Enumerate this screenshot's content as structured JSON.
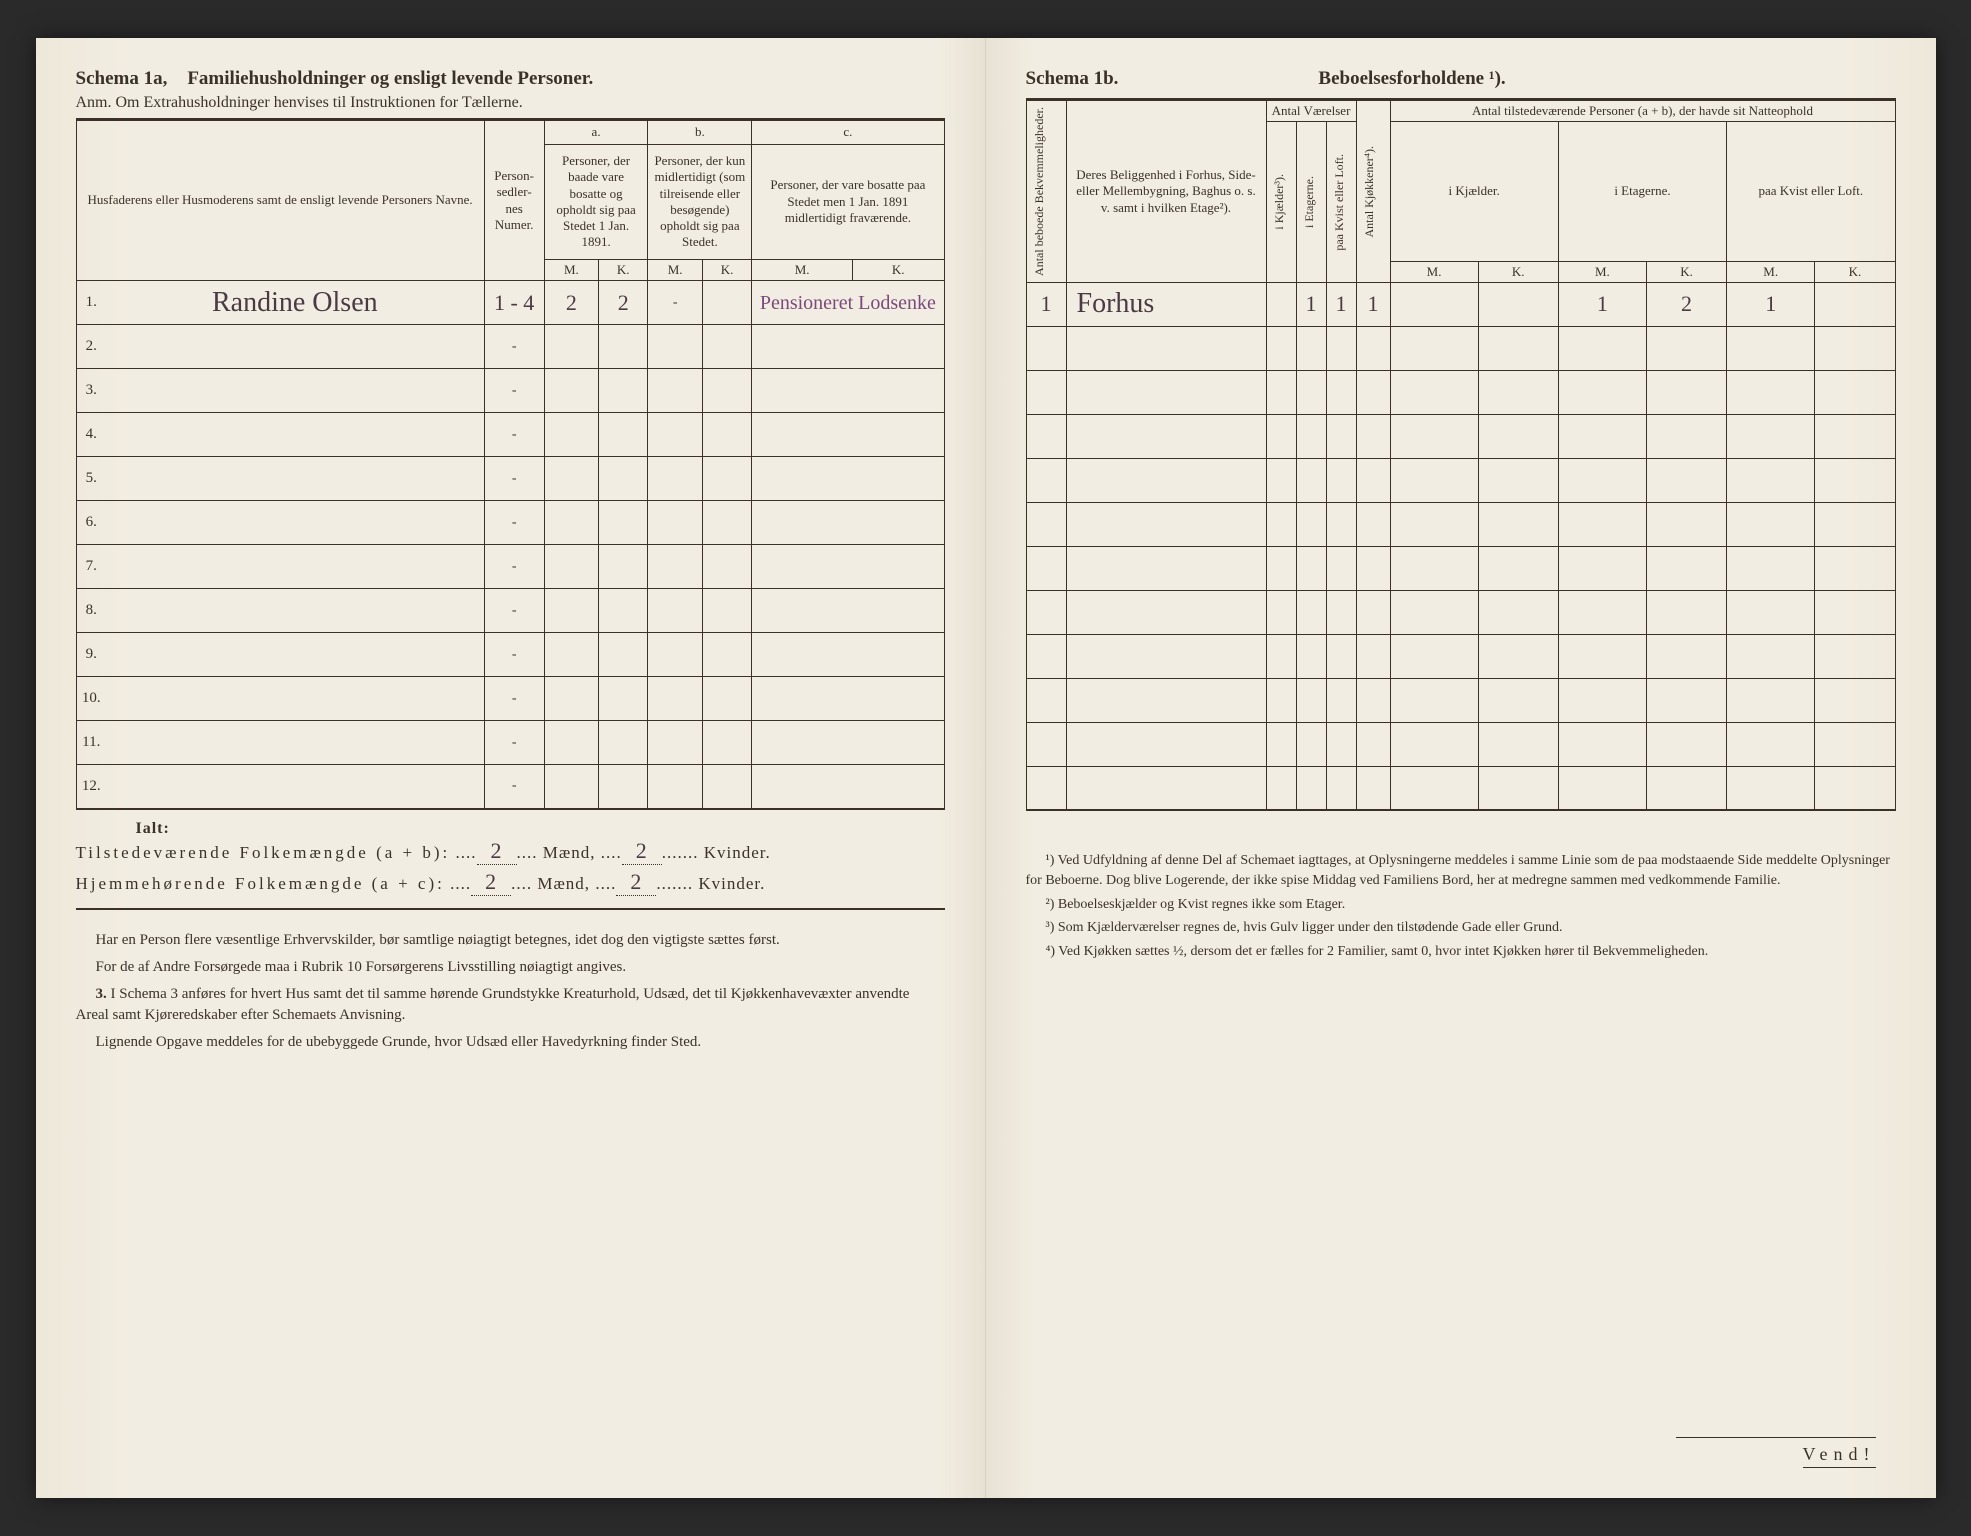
{
  "left": {
    "schema_label": "Schema 1a,",
    "schema_title": "Familiehusholdninger og ensligt levende Personer.",
    "anm": "Anm. Om Extrahusholdninger henvises til Instruktionen for Tællerne.",
    "columns": {
      "name": "Husfaderens eller Husmoderens samt de ensligt levende Personers Navne.",
      "sedler": "Person-sedler-nes Numer.",
      "a_letter": "a.",
      "a": "Personer, der baade vare bosatte og opholdt sig paa Stedet 1 Jan. 1891.",
      "b_letter": "b.",
      "b": "Personer, der kun midlertidigt (som tilreisende eller besøgende) opholdt sig paa Stedet.",
      "c_letter": "c.",
      "c": "Personer, der vare bosatte paa Stedet men 1 Jan. 1891 midlertidigt fraværende.",
      "m": "M.",
      "k": "K."
    },
    "rows": [
      {
        "n": "1.",
        "name": "Randine Olsen",
        "sedler": "1 - 4",
        "a_m": "2",
        "a_k": "2",
        "b_m": "-",
        "note": "Pensioneret Lodsenke"
      },
      {
        "n": "2.",
        "name": "",
        "sedler": "-",
        "a_m": "",
        "a_k": ""
      },
      {
        "n": "3.",
        "name": "",
        "sedler": "-"
      },
      {
        "n": "4.",
        "name": "",
        "sedler": "-"
      },
      {
        "n": "5.",
        "name": "",
        "sedler": "-"
      },
      {
        "n": "6.",
        "name": "",
        "sedler": "-"
      },
      {
        "n": "7.",
        "name": "",
        "sedler": "-"
      },
      {
        "n": "8.",
        "name": "",
        "sedler": "-"
      },
      {
        "n": "9.",
        "name": "",
        "sedler": "-"
      },
      {
        "n": "10.",
        "name": "",
        "sedler": "-"
      },
      {
        "n": "11.",
        "name": "",
        "sedler": "-"
      },
      {
        "n": "12.",
        "name": "",
        "sedler": "-"
      }
    ],
    "ialt": "Ialt:",
    "totals": {
      "line1_label": "Tilstedeværende Folkemængde (a + b):",
      "line1_m": "2",
      "line1_m_suffix": "Mænd,",
      "line1_k": "2",
      "line1_k_suffix": "Kvinder.",
      "line2_label": "Hjemmehørende Folkemængde (a + c):",
      "line2_m": "2",
      "line2_m_suffix": "Mænd,",
      "line2_k": "2",
      "line2_k_suffix": "Kvinder."
    },
    "body": {
      "p1": "Har en Person flere væsentlige Erhvervskilder, bør samtlige nøiagtigt betegnes, idet dog den vigtigste sættes først.",
      "p2": "For de af Andre Forsørgede maa i Rubrik 10 Forsørgerens Livsstilling nøiagtigt angives.",
      "p3_num": "3.",
      "p3": "I Schema 3 anføres for hvert Hus samt det til samme hørende Grundstykke Kreaturhold, Udsæd, det til Kjøkkenhavevæxter anvendte Areal samt Kjøreredskaber efter Schemaets Anvisning.",
      "p4": "Lignende Opgave meddeles for de ubebyggede Grunde, hvor Udsæd eller Havedyrkning finder Sted."
    }
  },
  "right": {
    "schema_label": "Schema 1b.",
    "schema_title": "Beboelsesforholdene ¹).",
    "columns": {
      "antal_bekv": "Antal beboede Bekvemmeligheder.",
      "beliggenhed": "Deres Beliggenhed i Forhus, Side- eller Mellembygning, Baghus o. s. v. samt i hvilken Etage²).",
      "vaerelser": "Antal Værelser",
      "kjelder": "i Kjælder³).",
      "etagerne": "i Etagerne.",
      "kvist": "paa Kvist eller Loft.",
      "kjokkener": "Antal Kjøkkener⁴).",
      "tilstede": "Antal tilstedeværende Personer (a + b), der havde sit Natteophold",
      "i_kjael": "i Kjælder.",
      "i_etag": "i Etagerne.",
      "paa_kvist": "paa Kvist eller Loft.",
      "m": "M.",
      "k": "K."
    },
    "rows": [
      {
        "bekv": "1",
        "belig": "Forhus",
        "kj": "",
        "et": "1",
        "kv": "1",
        "kjok": "1",
        "e_m": "1",
        "e_k": "2",
        "kv_m": "1"
      },
      {},
      {},
      {},
      {},
      {},
      {},
      {},
      {},
      {},
      {},
      {}
    ],
    "footnotes": {
      "f1": "¹) Ved Udfyldning af denne Del af Schemaet iagttages, at Oplysningerne meddeles i samme Linie som de paa modstaaende Side meddelte Oplysninger for Beboerne. Dog blive Logerende, der ikke spise Middag ved Familiens Bord, her at medregne sammen med vedkommende Familie.",
      "f2": "²) Beboelseskjælder og Kvist regnes ikke som Etager.",
      "f3": "³) Som Kjælderværelser regnes de, hvis Gulv ligger under den tilstødende Gade eller Grund.",
      "f4": "⁴) Ved Kjøkken sættes ½, dersom det er fælles for 2 Familier, samt 0, hvor intet Kjøkken hører til Bekvemmeligheden."
    },
    "vend": "Vend!"
  }
}
